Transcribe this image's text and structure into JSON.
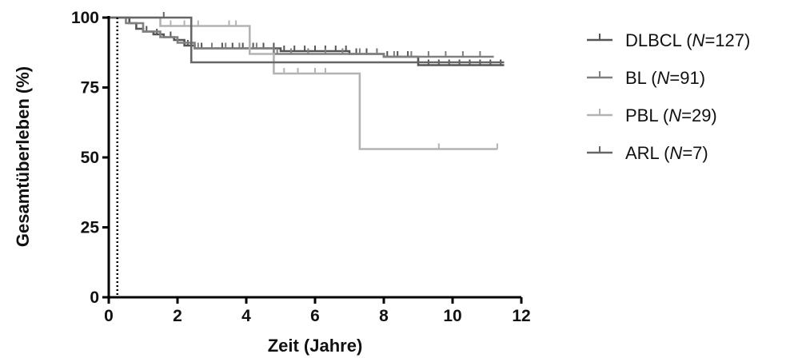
{
  "chart_data": {
    "type": "line",
    "xlabel": "Zeit (Jahre)",
    "ylabel": "Gesamtüberleben (%)",
    "xlim": [
      0,
      12
    ],
    "ylim": [
      0,
      100
    ],
    "xticks": [
      0,
      2,
      4,
      6,
      8,
      10,
      12
    ],
    "yticks": [
      0,
      25,
      50,
      75,
      100
    ],
    "reference_line_x": 0.25,
    "legend_position": "right",
    "series": [
      {
        "name": "DLBCL",
        "n_label": "N=127",
        "color": "#555555",
        "steps": [
          [
            0,
            100
          ],
          [
            0.4,
            100
          ],
          [
            0.6,
            98
          ],
          [
            0.8,
            96
          ],
          [
            1.0,
            95
          ],
          [
            1.3,
            94
          ],
          [
            1.6,
            93
          ],
          [
            1.9,
            92
          ],
          [
            2.2,
            90
          ],
          [
            2.5,
            89
          ],
          [
            3.0,
            89
          ],
          [
            4.0,
            89
          ],
          [
            5.0,
            88
          ],
          [
            6.0,
            88
          ],
          [
            7.0,
            87
          ],
          [
            8.0,
            86
          ],
          [
            9.0,
            83
          ],
          [
            11.5,
            83
          ]
        ],
        "censors": [
          1.1,
          1.4,
          1.8,
          2.3,
          2.7,
          3.0,
          3.3,
          3.6,
          3.9,
          4.2,
          4.5,
          4.8,
          5.1,
          5.4,
          5.7,
          6.0,
          6.3,
          6.6,
          6.9,
          7.2,
          7.5,
          7.8,
          8.1,
          8.4,
          8.7,
          9.0,
          9.3,
          9.6,
          9.9,
          10.2,
          10.5,
          10.8,
          11.1,
          11.4
        ]
      },
      {
        "name": "BL",
        "n_label": "N=91",
        "color": "#808080",
        "steps": [
          [
            0,
            100
          ],
          [
            0.5,
            98
          ],
          [
            1.0,
            95
          ],
          [
            1.5,
            93
          ],
          [
            2.0,
            91
          ],
          [
            2.5,
            89
          ],
          [
            4.0,
            89
          ],
          [
            4.8,
            87
          ],
          [
            6.0,
            87
          ],
          [
            8.0,
            86
          ],
          [
            10.0,
            86
          ],
          [
            11.2,
            86
          ]
        ],
        "censors": [
          2.6,
          3.0,
          3.4,
          3.8,
          4.3,
          4.9,
          5.3,
          5.8,
          6.3,
          6.8,
          7.3,
          7.8,
          8.3,
          8.8,
          9.3,
          9.8,
          10.3,
          10.8
        ]
      },
      {
        "name": "PBL",
        "n_label": "N=29",
        "color": "#b3b3b3",
        "steps": [
          [
            0,
            100
          ],
          [
            1.5,
            97
          ],
          [
            4.1,
            97
          ],
          [
            4.1,
            87
          ],
          [
            4.8,
            87
          ],
          [
            4.8,
            80
          ],
          [
            7.3,
            80
          ],
          [
            7.3,
            53
          ],
          [
            11.3,
            53
          ]
        ],
        "censors": [
          1.8,
          2.2,
          2.6,
          3.5,
          3.7,
          5.1,
          5.5,
          6.0,
          6.3,
          9.6,
          11.3
        ]
      },
      {
        "name": "ARL",
        "n_label": "N=7",
        "color": "#666666",
        "steps": [
          [
            0,
            100
          ],
          [
            2.4,
            100
          ],
          [
            2.4,
            84
          ],
          [
            9.0,
            84
          ],
          [
            11.5,
            84
          ]
        ],
        "censors": [
          1.6
        ]
      }
    ]
  },
  "colors": {
    "axis": "#000000"
  }
}
